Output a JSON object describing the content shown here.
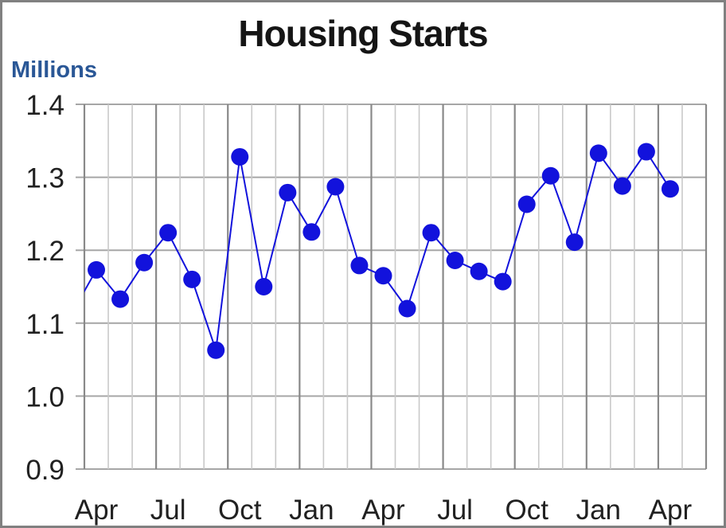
{
  "window": {
    "background_color": "#FFFFFF",
    "frame_color": "#808080"
  },
  "header": {
    "title_color": "#151515"
  },
  "y_axis": {
    "title_color": "#2A5796",
    "tick_label_color": "#212121",
    "tick_labels": [
      "1.4",
      "1.3",
      "1.2",
      "1.1",
      "1.0",
      "0.9"
    ]
  },
  "x_axis": {
    "tick_label_color": "#212121",
    "labeled_ticks": [
      "Apr",
      "Jul",
      "Oct",
      "Jan",
      "Apr",
      "Jul",
      "Oct",
      "Jan",
      "Apr"
    ],
    "label_every_n_months": 3
  },
  "grid": {
    "horizontal_color": "#A6A6A6",
    "vertical_minor_color": "#C9C9C9",
    "vertical_major_color": "#898989"
  },
  "chart_data": {
    "type": "line",
    "title": "Housing Starts",
    "ylabel": "Millions",
    "xlabel": "",
    "ylim": [
      0.9,
      1.4
    ],
    "y_tick_interval": 0.1,
    "grid": "on",
    "legend": "none",
    "marker": "circle",
    "series_color": "#1212DC",
    "categories": [
      "Apr",
      "May",
      "Jun",
      "Jul",
      "Aug",
      "Sep",
      "Oct",
      "Nov",
      "Dec",
      "Jan",
      "Feb",
      "Mar",
      "Apr",
      "May",
      "Jun",
      "Jul",
      "Aug",
      "Sep",
      "Oct",
      "Nov",
      "Dec",
      "Jan",
      "Feb",
      "Mar",
      "Apr"
    ],
    "values": [
      1.173,
      1.133,
      1.183,
      1.224,
      1.16,
      1.063,
      1.328,
      1.15,
      1.279,
      1.225,
      1.287,
      1.179,
      1.165,
      1.12,
      1.224,
      1.186,
      1.171,
      1.157,
      1.263,
      1.302,
      1.211,
      1.333,
      1.288,
      1.335,
      1.284
    ],
    "lead_in_point": {
      "category": "Mar",
      "value": 1.115,
      "clipped_outside_plot": true
    },
    "trailing_empty_categories": 1
  }
}
